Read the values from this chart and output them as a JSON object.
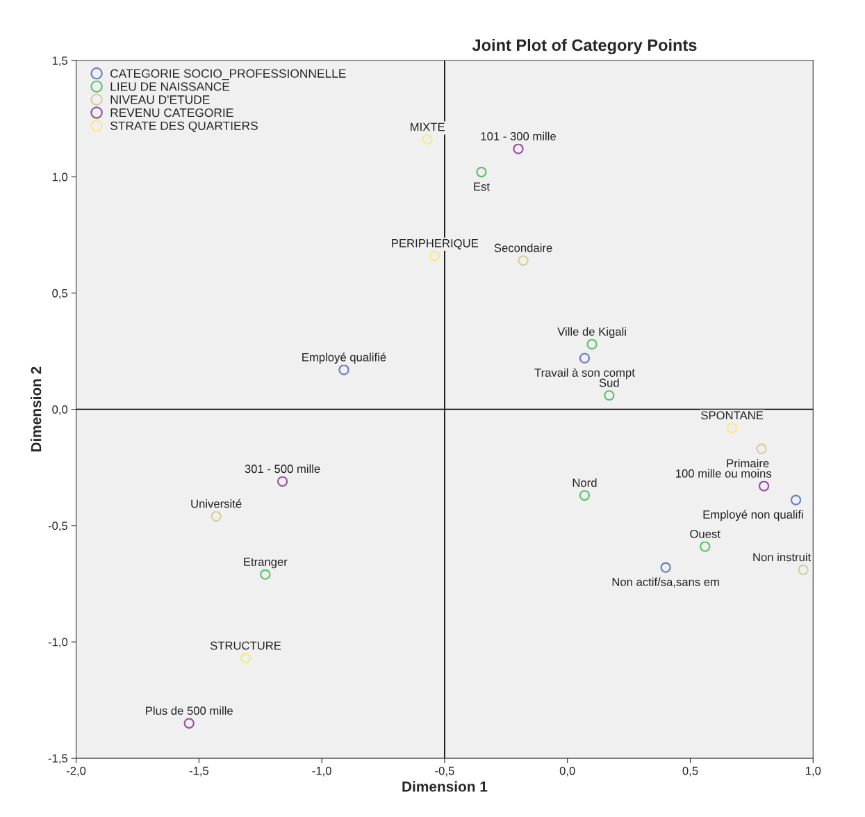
{
  "chart_data": {
    "type": "scatter",
    "title": "Joint Plot of Category Points",
    "xlabel": "Dimension 1",
    "ylabel": "Dimension 2",
    "xlim": [
      -2.0,
      1.0
    ],
    "ylim": [
      -1.5,
      1.5
    ],
    "xticks": [
      {
        "value": -2.0,
        "label": "-2,0"
      },
      {
        "value": -1.5,
        "label": "-1,5"
      },
      {
        "value": -1.0,
        "label": "-1,0"
      },
      {
        "value": -0.5,
        "label": "-0,5"
      },
      {
        "value": 0.0,
        "label": "0,0"
      },
      {
        "value": 0.5,
        "label": "0,5"
      },
      {
        "value": 1.0,
        "label": "1,0"
      }
    ],
    "yticks": [
      {
        "value": -1.5,
        "label": "-1,5"
      },
      {
        "value": -1.0,
        "label": "-1,0"
      },
      {
        "value": -0.5,
        "label": "-0,5"
      },
      {
        "value": 0.0,
        "label": "0,0"
      },
      {
        "value": 0.5,
        "label": "0,5"
      },
      {
        "value": 1.0,
        "label": "1,0"
      },
      {
        "value": 1.5,
        "label": "1,5"
      }
    ],
    "grid": false,
    "legend": "top left",
    "marker": "circle",
    "ref_lines": [
      {
        "axis": "x",
        "value": -0.5,
        "color": "#000000"
      },
      {
        "axis": "y",
        "value": 0.0,
        "color": "#000000"
      }
    ],
    "series": [
      {
        "name": "CATEGORIE SOCIO_PROFESSIONNELLE",
        "color": "#6b7fc4",
        "x": [
          -0.91,
          0.07,
          0.93,
          0.4
        ],
        "values": [
          0.17,
          0.22,
          -0.39,
          -0.68
        ]
      },
      {
        "name": "LIEU DE NAISSANCE",
        "color": "#5cc46b",
        "x": [
          -0.35,
          0.1,
          0.17,
          0.07,
          0.56,
          -1.23
        ],
        "values": [
          1.02,
          0.28,
          0.06,
          -0.37,
          -0.59,
          -0.71
        ]
      },
      {
        "name": "NIVEAU D'ETUDE",
        "color": "#d6cf9e",
        "x": [
          -0.18,
          0.79,
          0.96,
          -1.43
        ],
        "values": [
          0.64,
          -0.17,
          -0.69,
          -0.46
        ]
      },
      {
        "name": "REVENU CATEGORIE",
        "color": "#a050a0",
        "x": [
          -0.2,
          -1.16,
          0.8,
          -1.54
        ],
        "values": [
          1.12,
          -0.31,
          -0.33,
          -1.35
        ]
      },
      {
        "name": "STRATE DES QUARTIERS",
        "color": "#f2ee80",
        "x": [
          -0.57,
          -0.54,
          0.67,
          -1.31
        ],
        "values": [
          1.16,
          0.66,
          -0.08,
          -1.07
        ]
      }
    ],
    "annotations": [
      {
        "text": "Employé qualifié",
        "x": -0.91,
        "y": 0.17
      },
      {
        "text": "Travail à son compt",
        "x": 0.07,
        "y": 0.22
      },
      {
        "text": "Employé non qualifi",
        "x": 0.93,
        "y": -0.39
      },
      {
        "text": "Non actif/sa,sans em",
        "x": 0.4,
        "y": -0.68
      },
      {
        "text": "Est",
        "x": -0.35,
        "y": 1.02
      },
      {
        "text": "Ville de Kigali",
        "x": 0.1,
        "y": 0.28
      },
      {
        "text": "Sud",
        "x": 0.17,
        "y": 0.06
      },
      {
        "text": "Nord",
        "x": 0.07,
        "y": -0.37
      },
      {
        "text": "Ouest",
        "x": 0.56,
        "y": -0.59
      },
      {
        "text": "Etranger",
        "x": -1.23,
        "y": -0.71
      },
      {
        "text": "Secondaire",
        "x": -0.18,
        "y": 0.64
      },
      {
        "text": "Primaire",
        "x": 0.79,
        "y": -0.17
      },
      {
        "text": "Non instruit",
        "x": 0.96,
        "y": -0.69
      },
      {
        "text": "Université",
        "x": -1.43,
        "y": -0.46
      },
      {
        "text": "101 - 300 mille",
        "x": -0.2,
        "y": 1.12
      },
      {
        "text": "301 - 500 mille",
        "x": -1.16,
        "y": -0.31
      },
      {
        "text": "100 mille ou moins",
        "x": 0.8,
        "y": -0.33
      },
      {
        "text": "Plus de 500 mille",
        "x": -1.54,
        "y": -1.35
      },
      {
        "text": "MIXTE",
        "x": -0.57,
        "y": 1.16
      },
      {
        "text": "PERIPHERIQUE",
        "x": -0.54,
        "y": 0.66
      },
      {
        "text": "SPONTANE",
        "x": 0.67,
        "y": -0.08
      },
      {
        "text": "STRUCTURE",
        "x": -1.31,
        "y": -1.07
      }
    ]
  }
}
